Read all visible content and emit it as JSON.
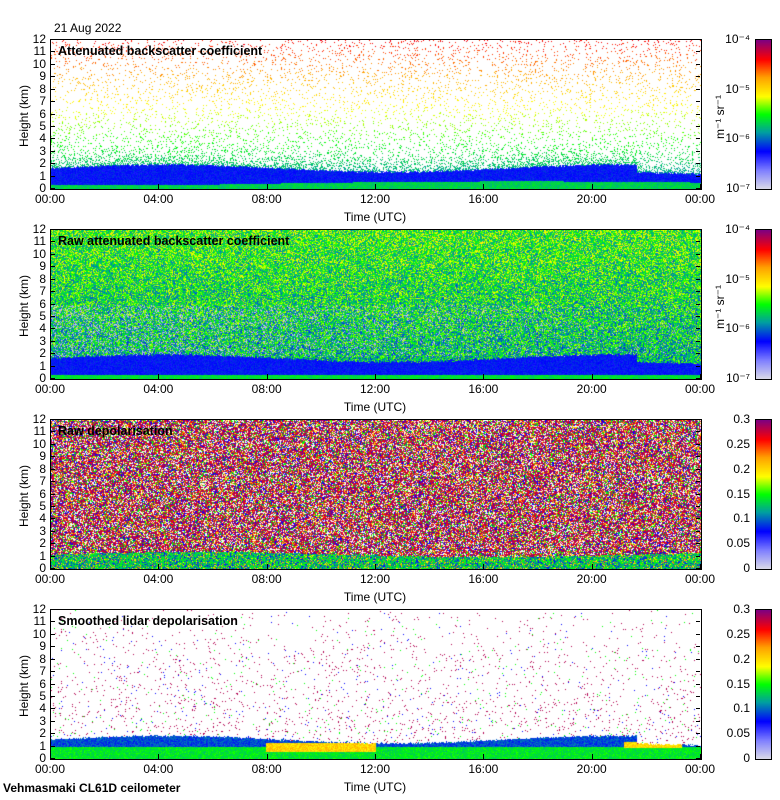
{
  "date_label": "21 Aug 2022",
  "footer": "Vehmasmaki CL61D ceilometer",
  "colors": {
    "axis": "#000000",
    "background": "#ffffff"
  },
  "chart_data": [
    {
      "type": "heatmap",
      "title": "Attenuated backscatter coefficient",
      "xlabel": "Time (UTC)",
      "ylabel": "Height (km)",
      "x_ticks": [
        "00:00",
        "04:00",
        "08:00",
        "12:00",
        "16:00",
        "20:00",
        "00:00"
      ],
      "xlim_hours": [
        0,
        24
      ],
      "y_ticks": [
        "0",
        "1",
        "2",
        "3",
        "4",
        "5",
        "6",
        "7",
        "8",
        "9",
        "10",
        "11",
        "12"
      ],
      "ylim": [
        0,
        12
      ],
      "colorbar": {
        "scale": "log",
        "range": [
          1e-07,
          0.0001
        ],
        "ticks": [
          "10⁻⁷",
          "10⁻⁶",
          "10⁻⁵",
          "10⁻⁴"
        ],
        "unit": "m⁻¹ sr⁻¹"
      },
      "mode": "att"
    },
    {
      "type": "heatmap",
      "title": "Raw attenuated backscatter coefficient",
      "xlabel": "Time (UTC)",
      "ylabel": "Height (km)",
      "x_ticks": [
        "00:00",
        "04:00",
        "08:00",
        "12:00",
        "16:00",
        "20:00",
        "00:00"
      ],
      "xlim_hours": [
        0,
        24
      ],
      "y_ticks": [
        "0",
        "1",
        "2",
        "3",
        "4",
        "5",
        "6",
        "7",
        "8",
        "9",
        "10",
        "11",
        "12"
      ],
      "ylim": [
        0,
        12
      ],
      "colorbar": {
        "scale": "log",
        "range": [
          1e-07,
          0.0001
        ],
        "ticks": [
          "10⁻⁷",
          "10⁻⁶",
          "10⁻⁵",
          "10⁻⁴"
        ],
        "unit": "m⁻¹ sr⁻¹"
      },
      "mode": "raw"
    },
    {
      "type": "heatmap",
      "title": "Raw depolarisation",
      "xlabel": "Time (UTC)",
      "ylabel": "Height (km)",
      "x_ticks": [
        "00:00",
        "04:00",
        "08:00",
        "12:00",
        "16:00",
        "20:00",
        "00:00"
      ],
      "xlim_hours": [
        0,
        24
      ],
      "y_ticks": [
        "0",
        "1",
        "2",
        "3",
        "4",
        "5",
        "6",
        "7",
        "8",
        "9",
        "10",
        "11",
        "12"
      ],
      "ylim": [
        0,
        12
      ],
      "colorbar": {
        "scale": "linear",
        "range": [
          0,
          0.3
        ],
        "ticks": [
          "0",
          "0.05",
          "0.1",
          "0.15",
          "0.2",
          "0.25",
          "0.3"
        ],
        "unit": ""
      },
      "mode": "rawdep"
    },
    {
      "type": "heatmap",
      "title": "Smoothed lidar depolarisation",
      "xlabel": "Time (UTC)",
      "ylabel": "Height (km)",
      "x_ticks": [
        "00:00",
        "04:00",
        "08:00",
        "12:00",
        "16:00",
        "20:00",
        "00:00"
      ],
      "xlim_hours": [
        0,
        24
      ],
      "y_ticks": [
        "0",
        "1",
        "2",
        "3",
        "4",
        "5",
        "6",
        "7",
        "8",
        "9",
        "10",
        "11",
        "12"
      ],
      "ylim": [
        0,
        12
      ],
      "colorbar": {
        "scale": "linear",
        "range": [
          0,
          0.3
        ],
        "ticks": [
          "0",
          "0.05",
          "0.1",
          "0.15",
          "0.2",
          "0.25",
          "0.3"
        ],
        "unit": ""
      },
      "mode": "smdep"
    }
  ]
}
